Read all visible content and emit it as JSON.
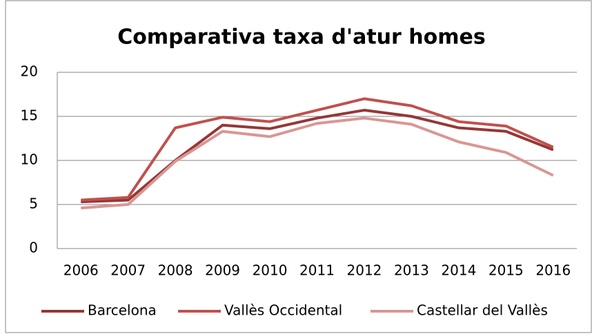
{
  "chart_data": {
    "type": "line",
    "title": "Comparativa taxa d'atur homes",
    "categories": [
      "2006",
      "2007",
      "2008",
      "2009",
      "2010",
      "2011",
      "2012",
      "2013",
      "2014",
      "2015",
      "2016"
    ],
    "series": [
      {
        "name": "Barcelona",
        "color": "#953735",
        "values": [
          5.3,
          5.5,
          10.0,
          14.0,
          13.6,
          14.8,
          15.7,
          15.0,
          13.7,
          13.3,
          11.2
        ]
      },
      {
        "name": "Vallès Occidental",
        "color": "#c0504d",
        "values": [
          5.5,
          5.8,
          13.7,
          14.9,
          14.4,
          15.7,
          17.0,
          16.2,
          14.4,
          13.9,
          11.5
        ]
      },
      {
        "name": "Castellar del Vallès",
        "color": "#d99694",
        "values": [
          4.6,
          5.0,
          9.9,
          13.3,
          12.7,
          14.2,
          14.8,
          14.1,
          12.1,
          10.9,
          8.3
        ]
      }
    ],
    "ylim": [
      0,
      20
    ],
    "yticks": [
      0,
      5,
      10,
      15,
      20
    ],
    "grid": true,
    "legend": "bottom"
  }
}
